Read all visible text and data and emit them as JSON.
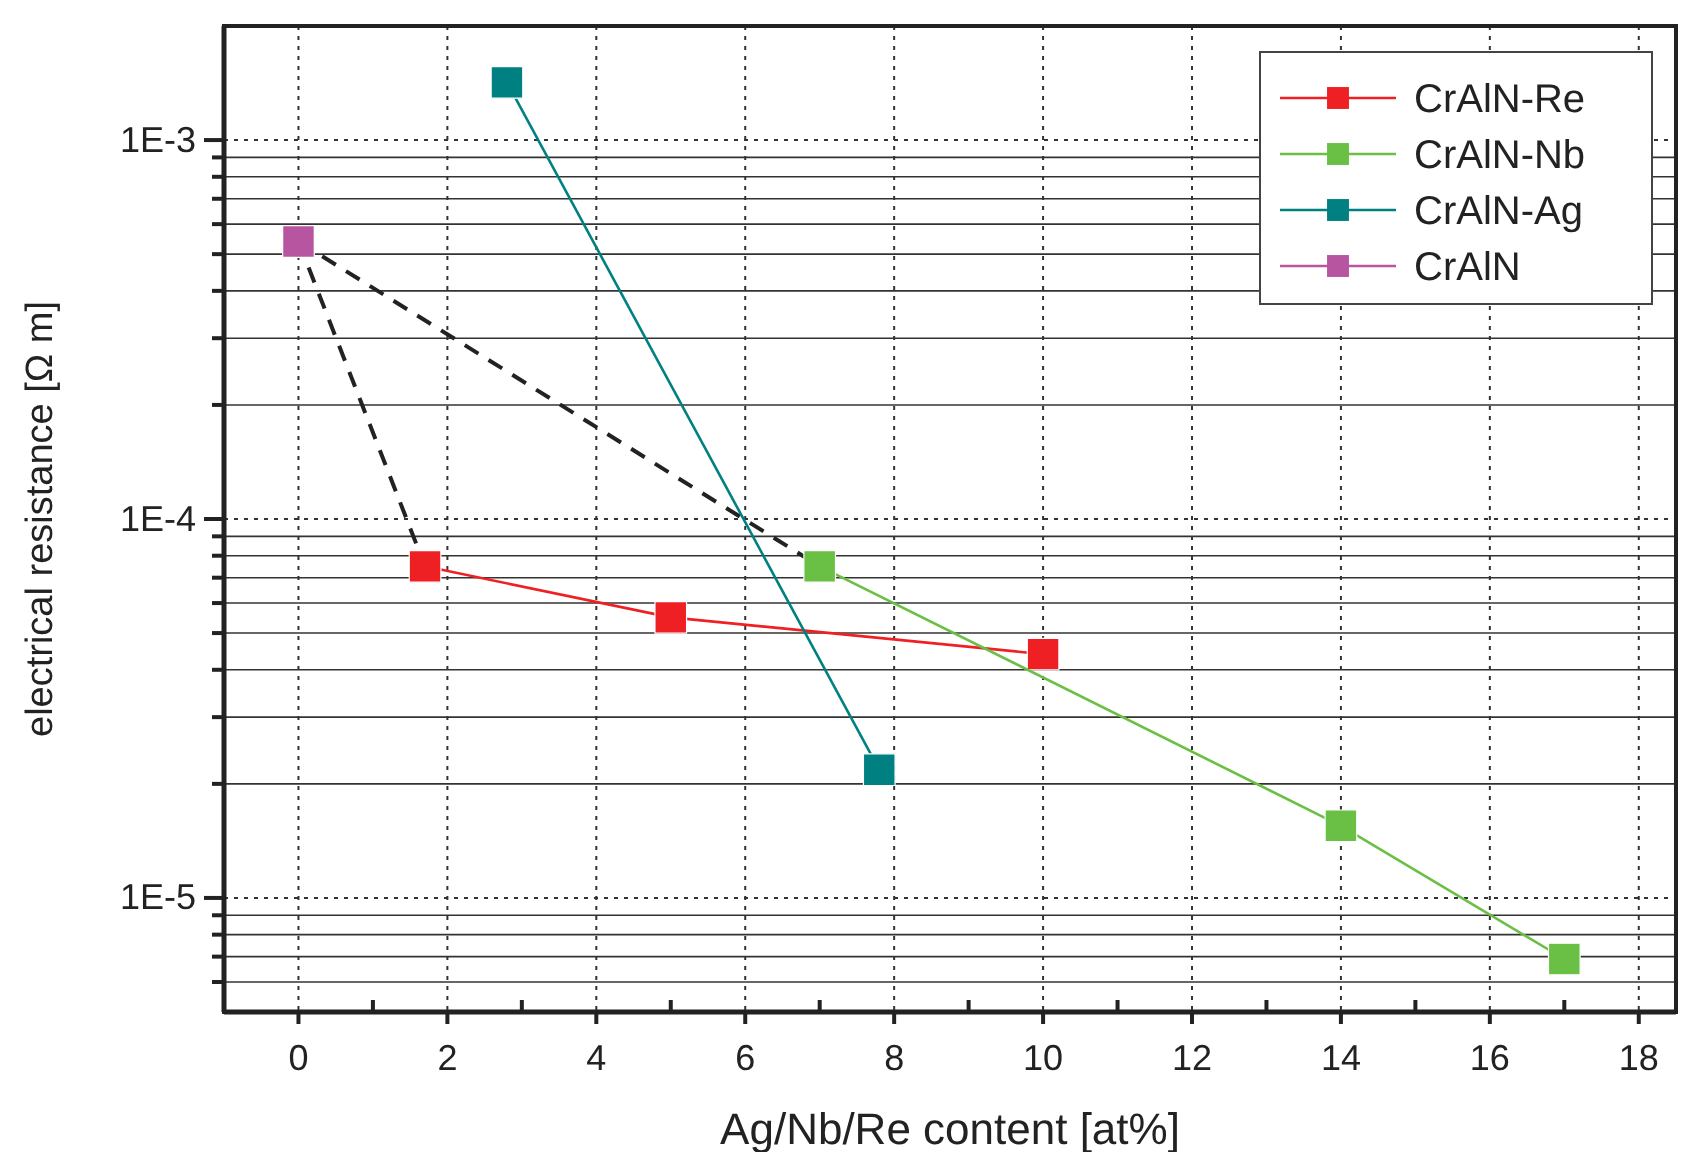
{
  "chart_data": {
    "type": "line",
    "xlabel": "Ag/Nb/Re content [at%]",
    "ylabel": "electrical resistance [Ω m]",
    "log": "y",
    "grid": true,
    "legend": "top right",
    "marker": "square",
    "line_style": "solid",
    "xlim": [
      -1,
      18.5
    ],
    "ylim": [
      5e-06,
      0.002
    ],
    "xticks": [
      {
        "value": -1,
        "label": null
      },
      0,
      {
        "value": 1,
        "label": null
      },
      2,
      {
        "value": 3,
        "label": null
      },
      4,
      {
        "value": 5,
        "label": null
      },
      6,
      {
        "value": 7,
        "label": null
      },
      8,
      {
        "value": 9,
        "label": null
      },
      10,
      {
        "value": 11,
        "label": null
      },
      12,
      {
        "value": 13,
        "label": null
      },
      14,
      {
        "value": 15,
        "label": null
      },
      16,
      {
        "value": 17,
        "label": null
      },
      18
    ],
    "yticks": [
      {
        "value": 6e-06,
        "label": null
      },
      {
        "value": 7e-06,
        "label": null
      },
      {
        "value": 8e-06,
        "label": null
      },
      {
        "value": 9e-06,
        "label": null
      },
      {
        "value": 1e-05,
        "label": "1E-5"
      },
      {
        "value": 2e-05,
        "label": null
      },
      {
        "value": 3e-05,
        "label": null
      },
      {
        "value": 4e-05,
        "label": null
      },
      {
        "value": 5e-05,
        "label": null
      },
      {
        "value": 6e-05,
        "label": null
      },
      {
        "value": 7e-05,
        "label": null
      },
      {
        "value": 8e-05,
        "label": null
      },
      {
        "value": 9e-05,
        "label": null
      },
      {
        "value": 0.0001,
        "label": "1E-4"
      },
      {
        "value": 0.0002,
        "label": null
      },
      {
        "value": 0.0003,
        "label": null
      },
      {
        "value": 0.0004,
        "label": null
      },
      {
        "value": 0.0005,
        "label": null
      },
      {
        "value": 0.0006,
        "label": null
      },
      {
        "value": 0.0007,
        "label": null
      },
      {
        "value": 0.0008,
        "label": null
      },
      {
        "value": 0.0009,
        "label": null
      },
      {
        "value": 0.001,
        "label": "1E-3"
      }
    ],
    "series": [
      {
        "x": [
          0,
          1.7
        ],
        "values": [
          0.00054,
          7.5e-05
        ],
        "color": "#222222",
        "line_style": "dashed",
        "marker": "none"
      },
      {
        "x": [
          0,
          7
        ],
        "values": [
          0.00054,
          7.5e-05
        ],
        "color": "#222222",
        "line_style": "dashed",
        "marker": "none"
      },
      {
        "name": "CrAlN-Re",
        "color": "#ee2024",
        "x": [
          1.7,
          5,
          10
        ],
        "values": [
          7.5e-05,
          5.5e-05,
          4.4e-05
        ]
      },
      {
        "name": "CrAlN-Nb",
        "color": "#6abf45",
        "x": [
          7,
          14,
          17
        ],
        "values": [
          7.5e-05,
          1.55e-05,
          6.9e-06
        ]
      },
      {
        "name": "CrAlN-Ag",
        "color": "#008080",
        "x": [
          2.8,
          7.8
        ],
        "values": [
          0.00142,
          2.18e-05
        ]
      },
      {
        "name": "CrAlN",
        "color": "#b855a0",
        "x": [
          0
        ],
        "values": [
          0.00054
        ]
      }
    ]
  }
}
